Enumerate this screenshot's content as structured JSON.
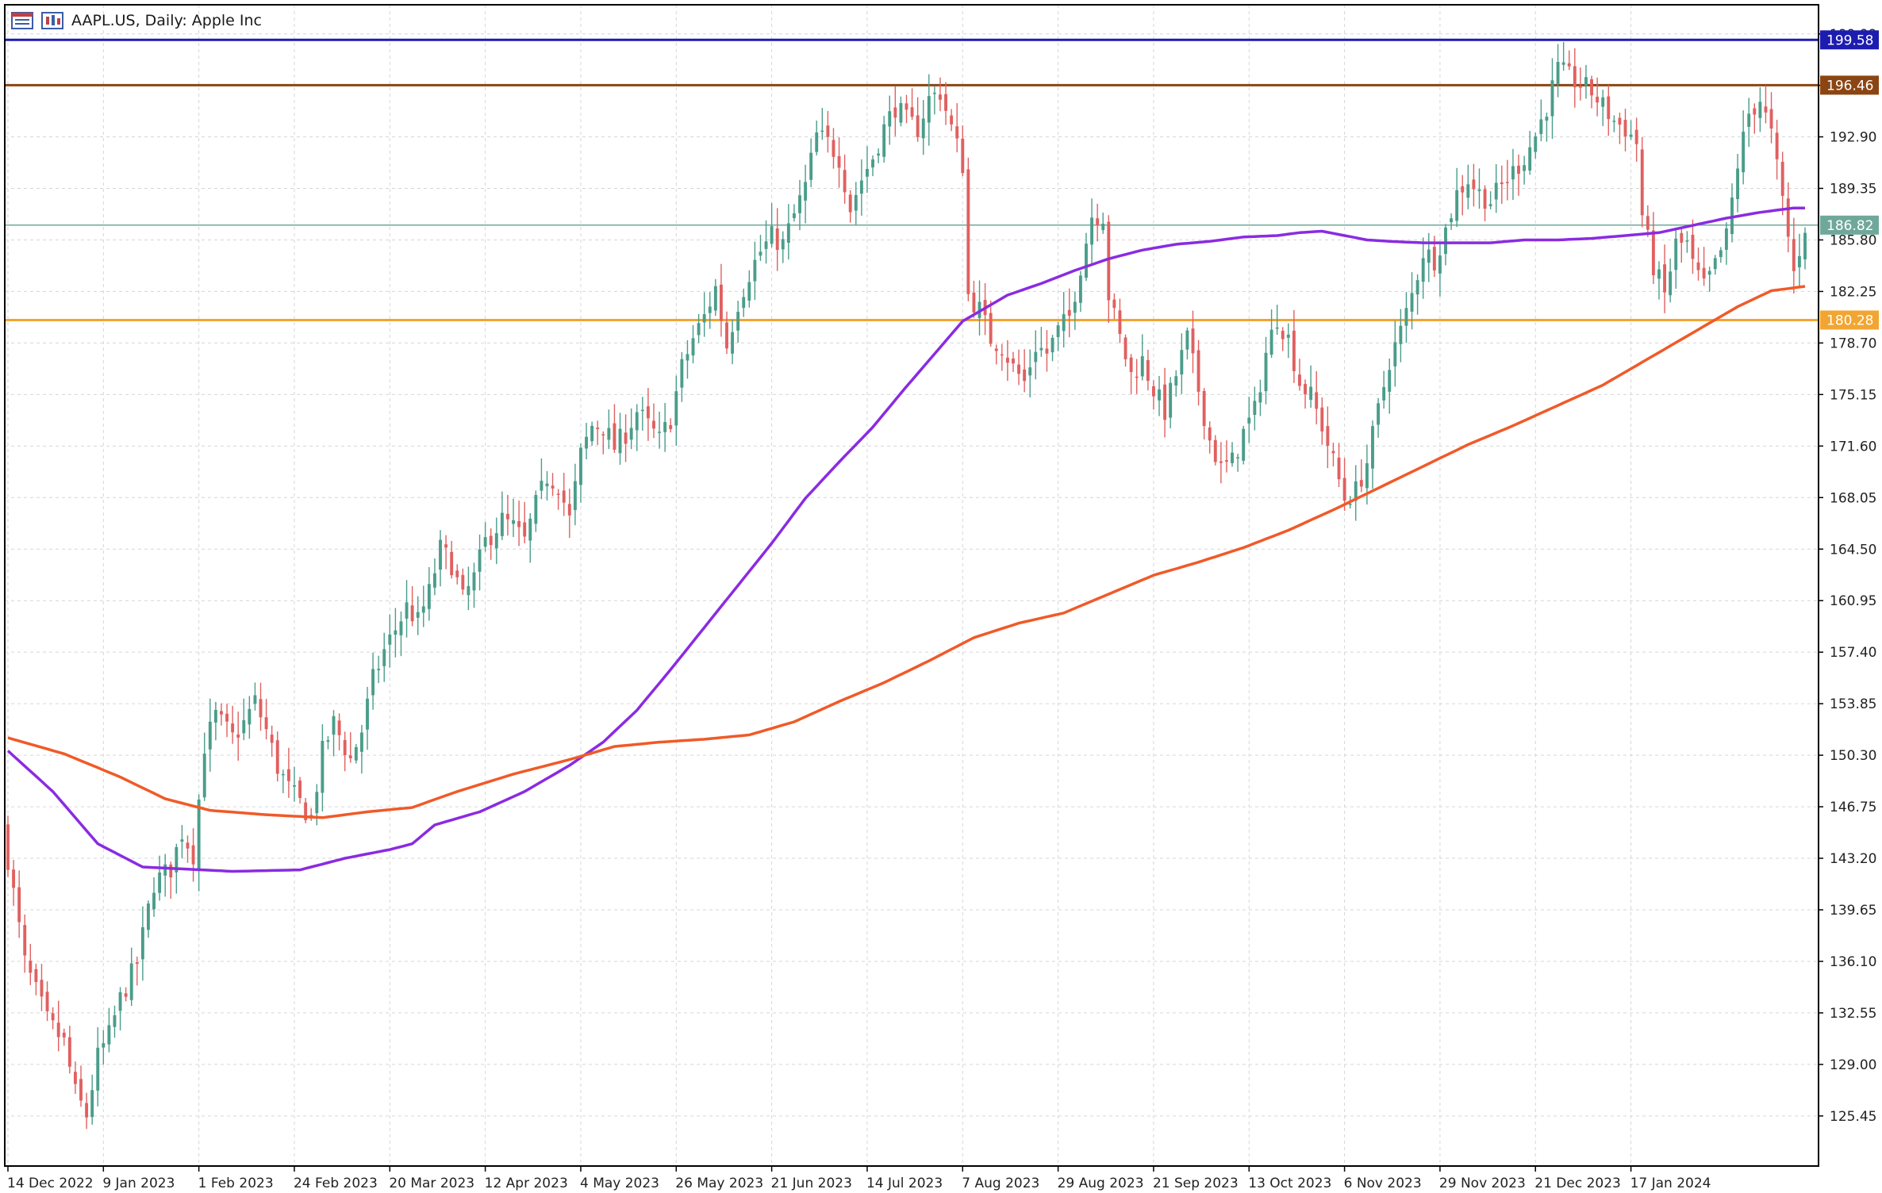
{
  "header": {
    "title": "AAPL.US, Daily:  Apple Inc",
    "icons": [
      "chart-list-icon",
      "chart-window-icon"
    ]
  },
  "chart_data": {
    "type": "candlestick",
    "symbol": "AAPL.US",
    "timeframe": "Daily",
    "instrument_name": "Apple Inc",
    "ylim": [
      122.0,
      202.0
    ],
    "y_ticks": [
      "125.45",
      "129.00",
      "132.55",
      "136.10",
      "139.65",
      "143.20",
      "146.75",
      "150.30",
      "153.85",
      "157.40",
      "160.95",
      "164.50",
      "168.05",
      "171.60",
      "175.15",
      "178.70",
      "182.25",
      "185.80",
      "189.35",
      "192.90",
      "196.45",
      "199.99"
    ],
    "x_ticks": [
      {
        "label": "14 Dec 2022",
        "index": 0
      },
      {
        "label": "9 Jan 2023",
        "index": 17
      },
      {
        "label": "1 Feb 2023",
        "index": 34
      },
      {
        "label": "24 Feb 2023",
        "index": 51
      },
      {
        "label": "20 Mar 2023",
        "index": 68
      },
      {
        "label": "12 Apr 2023",
        "index": 85
      },
      {
        "label": "4 May 2023",
        "index": 102
      },
      {
        "label": "26 May 2023",
        "index": 119
      },
      {
        "label": "21 Jun 2023",
        "index": 136
      },
      {
        "label": "14 Jul 2023",
        "index": 153
      },
      {
        "label": "7 Aug 2023",
        "index": 170
      },
      {
        "label": "29 Aug 2023",
        "index": 187
      },
      {
        "label": "21 Sep 2023",
        "index": 204
      },
      {
        "label": "13 Oct 2023",
        "index": 221
      },
      {
        "label": "6 Nov 2023",
        "index": 238
      },
      {
        "label": "29 Nov 2023",
        "index": 255
      },
      {
        "label": "21 Dec 2023",
        "index": 272
      },
      {
        "label": "17 Jan 2024",
        "index": 289
      }
    ],
    "close_anchors": [
      [
        0,
        143.2
      ],
      [
        3,
        136.0
      ],
      [
        7,
        132.0
      ],
      [
        10,
        130.5
      ],
      [
        12,
        127.0
      ],
      [
        14,
        125.5
      ],
      [
        16,
        129.5
      ],
      [
        18,
        131.0
      ],
      [
        20,
        133.5
      ],
      [
        23,
        136.0
      ],
      [
        26,
        141.5
      ],
      [
        29,
        142.5
      ],
      [
        31,
        145.0
      ],
      [
        33,
        143.5
      ],
      [
        35,
        151.0
      ],
      [
        37,
        153.0
      ],
      [
        40,
        151.5
      ],
      [
        42,
        152.5
      ],
      [
        44,
        154.0
      ],
      [
        46,
        152.0
      ],
      [
        48,
        149.5
      ],
      [
        50,
        148.0
      ],
      [
        52,
        147.0
      ],
      [
        54,
        146.0
      ],
      [
        56,
        150.5
      ],
      [
        58,
        152.5
      ],
      [
        61,
        150.0
      ],
      [
        63,
        152.0
      ],
      [
        65,
        155.5
      ],
      [
        67,
        157.5
      ],
      [
        69,
        159.0
      ],
      [
        71,
        160.5
      ],
      [
        73,
        159.5
      ],
      [
        75,
        161.5
      ],
      [
        77,
        164.5
      ],
      [
        79,
        163.5
      ],
      [
        81,
        161.0
      ],
      [
        83,
        162.5
      ],
      [
        85,
        165.0
      ],
      [
        88,
        166.5
      ],
      [
        90,
        166.0
      ],
      [
        92,
        165.0
      ],
      [
        94,
        167.5
      ],
      [
        96,
        169.5
      ],
      [
        98,
        169.0
      ],
      [
        100,
        166.5
      ],
      [
        102,
        171.0
      ],
      [
        104,
        173.0
      ],
      [
        106,
        173.0
      ],
      [
        108,
        171.5
      ],
      [
        110,
        172.5
      ],
      [
        112,
        174.0
      ],
      [
        114,
        173.0
      ],
      [
        116,
        172.0
      ],
      [
        118,
        173.5
      ],
      [
        120,
        177.0
      ],
      [
        122,
        179.0
      ],
      [
        124,
        180.5
      ],
      [
        126,
        182.5
      ],
      [
        128,
        178.5
      ],
      [
        130,
        181.5
      ],
      [
        132,
        183.5
      ],
      [
        134,
        185.0
      ],
      [
        136,
        186.0
      ],
      [
        138,
        185.5
      ],
      [
        140,
        187.5
      ],
      [
        142,
        189.5
      ],
      [
        144,
        193.0
      ],
      [
        146,
        192.5
      ],
      [
        148,
        191.5
      ],
      [
        150,
        188.0
      ],
      [
        152,
        190.0
      ],
      [
        154,
        191.5
      ],
      [
        156,
        193.5
      ],
      [
        158,
        195.0
      ],
      [
        160,
        194.0
      ],
      [
        162,
        193.5
      ],
      [
        164,
        195.5
      ],
      [
        166,
        196.0
      ],
      [
        168,
        193.5
      ],
      [
        170,
        191.0
      ],
      [
        171,
        182.0
      ],
      [
        173,
        181.0
      ],
      [
        175,
        179.0
      ],
      [
        177,
        178.5
      ],
      [
        179,
        177.0
      ],
      [
        181,
        176.0
      ],
      [
        183,
        178.5
      ],
      [
        185,
        178.0
      ],
      [
        187,
        179.5
      ],
      [
        189,
        180.5
      ],
      [
        191,
        184.0
      ],
      [
        193,
        187.5
      ],
      [
        195,
        187.5
      ],
      [
        196,
        182.0
      ],
      [
        198,
        179.0
      ],
      [
        200,
        176.5
      ],
      [
        202,
        177.5
      ],
      [
        204,
        175.5
      ],
      [
        206,
        174.0
      ],
      [
        208,
        176.5
      ],
      [
        210,
        179.0
      ],
      [
        212,
        175.5
      ],
      [
        214,
        172.0
      ],
      [
        216,
        170.0
      ],
      [
        218,
        170.5
      ],
      [
        220,
        172.5
      ],
      [
        222,
        174.0
      ],
      [
        224,
        178.0
      ],
      [
        226,
        180.5
      ],
      [
        228,
        179.0
      ],
      [
        230,
        176.0
      ],
      [
        232,
        175.0
      ],
      [
        234,
        173.0
      ],
      [
        236,
        170.5
      ],
      [
        238,
        168.0
      ],
      [
        240,
        168.5
      ],
      [
        242,
        170.5
      ],
      [
        244,
        174.0
      ],
      [
        246,
        177.5
      ],
      [
        248,
        179.5
      ],
      [
        250,
        182.0
      ],
      [
        252,
        185.0
      ],
      [
        254,
        184.5
      ],
      [
        256,
        186.5
      ],
      [
        258,
        189.0
      ],
      [
        260,
        190.0
      ],
      [
        262,
        189.0
      ],
      [
        264,
        188.5
      ],
      [
        266,
        189.5
      ],
      [
        268,
        190.5
      ],
      [
        270,
        191.5
      ],
      [
        272,
        193.0
      ],
      [
        274,
        195.0
      ],
      [
        276,
        197.5
      ],
      [
        278,
        197.0
      ],
      [
        280,
        196.5
      ],
      [
        282,
        196.0
      ],
      [
        284,
        195.0
      ],
      [
        286,
        194.0
      ],
      [
        288,
        193.5
      ],
      [
        290,
        192.5
      ],
      [
        291,
        187.5
      ],
      [
        293,
        184.0
      ],
      [
        295,
        182.0
      ],
      [
        297,
        185.5
      ],
      [
        299,
        185.5
      ],
      [
        300,
        184.0
      ],
      [
        302,
        182.5
      ],
      [
        304,
        184.0
      ],
      [
        306,
        186.0
      ],
      [
        308,
        191.0
      ],
      [
        310,
        194.5
      ],
      [
        312,
        195.5
      ],
      [
        314,
        193.0
      ],
      [
        316,
        188.5
      ],
      [
        318,
        183.5
      ],
      [
        320,
        186.8
      ]
    ],
    "series": [
      {
        "name": "",
        "color": "#8a2be2",
        "kind": "moving_average",
        "anchors": [
          [
            0,
            150.6
          ],
          [
            8,
            147.8
          ],
          [
            16,
            144.2
          ],
          [
            24,
            142.6
          ],
          [
            40,
            142.3
          ],
          [
            52,
            142.4
          ],
          [
            60,
            143.2
          ],
          [
            68,
            143.8
          ],
          [
            72,
            144.2
          ],
          [
            76,
            145.5
          ],
          [
            84,
            146.4
          ],
          [
            92,
            147.8
          ],
          [
            100,
            149.6
          ],
          [
            106,
            151.2
          ],
          [
            112,
            153.4
          ],
          [
            118,
            156.2
          ],
          [
            124,
            159.1
          ],
          [
            130,
            162.0
          ],
          [
            136,
            164.9
          ],
          [
            142,
            168.0
          ],
          [
            148,
            170.5
          ],
          [
            154,
            172.9
          ],
          [
            160,
            175.7
          ],
          [
            166,
            178.4
          ],
          [
            170,
            180.2
          ],
          [
            174,
            181.1
          ],
          [
            178,
            182.0
          ],
          [
            184,
            182.8
          ],
          [
            190,
            183.7
          ],
          [
            196,
            184.5
          ],
          [
            202,
            185.1
          ],
          [
            208,
            185.5
          ],
          [
            214,
            185.7
          ],
          [
            220,
            186.0
          ],
          [
            226,
            186.1
          ],
          [
            230,
            186.3
          ],
          [
            234,
            186.4
          ],
          [
            238,
            186.1
          ],
          [
            242,
            185.8
          ],
          [
            246,
            185.7
          ],
          [
            252,
            185.6
          ],
          [
            258,
            185.6
          ],
          [
            264,
            185.6
          ],
          [
            270,
            185.8
          ],
          [
            276,
            185.8
          ],
          [
            282,
            185.9
          ],
          [
            288,
            186.1
          ],
          [
            294,
            186.3
          ],
          [
            300,
            186.8
          ],
          [
            306,
            187.3
          ],
          [
            312,
            187.7
          ],
          [
            318,
            188.0
          ]
        ]
      },
      {
        "name": "",
        "color": "#f05a28",
        "kind": "moving_average",
        "anchors": [
          [
            0,
            151.5
          ],
          [
            10,
            150.4
          ],
          [
            20,
            148.8
          ],
          [
            28,
            147.3
          ],
          [
            36,
            146.5
          ],
          [
            46,
            146.2
          ],
          [
            56,
            146.0
          ],
          [
            64,
            146.4
          ],
          [
            72,
            146.7
          ],
          [
            80,
            147.8
          ],
          [
            90,
            149.0
          ],
          [
            100,
            150.0
          ],
          [
            108,
            150.9
          ],
          [
            116,
            151.2
          ],
          [
            124,
            151.4
          ],
          [
            132,
            151.7
          ],
          [
            140,
            152.6
          ],
          [
            148,
            154.0
          ],
          [
            156,
            155.3
          ],
          [
            164,
            156.8
          ],
          [
            172,
            158.4
          ],
          [
            180,
            159.4
          ],
          [
            188,
            160.1
          ],
          [
            196,
            161.4
          ],
          [
            204,
            162.7
          ],
          [
            212,
            163.6
          ],
          [
            220,
            164.6
          ],
          [
            228,
            165.8
          ],
          [
            236,
            167.2
          ],
          [
            244,
            168.7
          ],
          [
            252,
            170.2
          ],
          [
            260,
            171.7
          ],
          [
            268,
            173.0
          ],
          [
            276,
            174.4
          ],
          [
            284,
            175.8
          ],
          [
            292,
            177.6
          ],
          [
            300,
            179.4
          ],
          [
            308,
            181.2
          ],
          [
            314,
            182.3
          ],
          [
            320,
            182.6
          ]
        ]
      }
    ],
    "horizontal_levels": [
      {
        "label": "199.58",
        "value": 199.58,
        "color": "#1c1cb0"
      },
      {
        "label": "196.46",
        "value": 196.46,
        "color": "#8b4513"
      },
      {
        "label": "186.82",
        "value": 186.82,
        "color": "#6fa89a"
      },
      {
        "label": "180.28",
        "value": 180.28,
        "color": "#f2a531"
      }
    ],
    "grid": true,
    "up_color": "#4a9d8a",
    "down_color": "#e06060"
  }
}
